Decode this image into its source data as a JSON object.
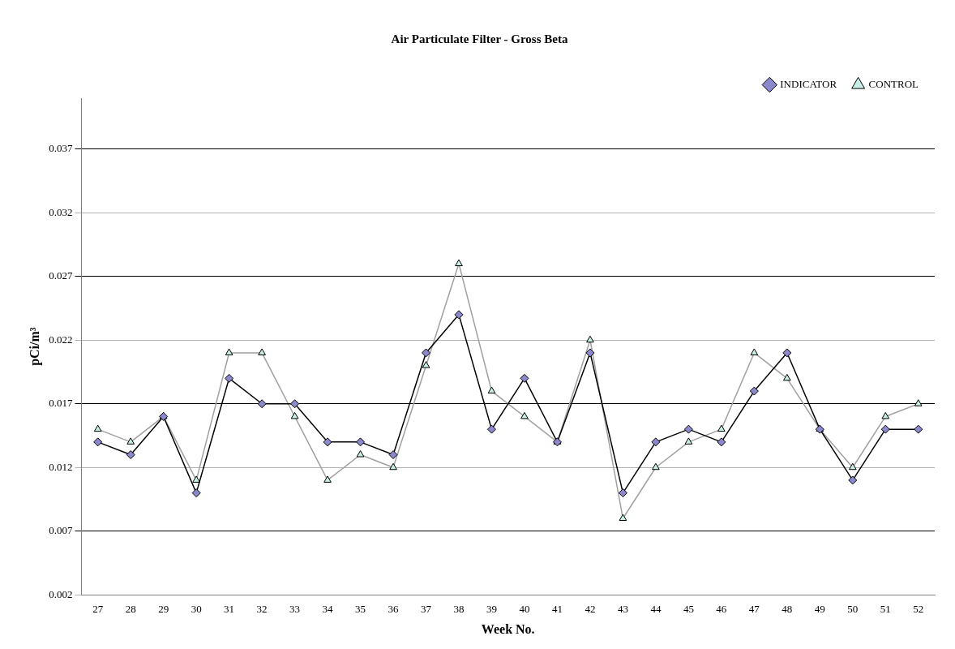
{
  "chart_data": {
    "type": "line",
    "title": "Air Particulate Filter - Gross Beta",
    "xlabel": "Week No.",
    "ylabel": "pCi/m³",
    "categories": [
      "27",
      "28",
      "29",
      "30",
      "31",
      "32",
      "33",
      "34",
      "35",
      "36",
      "37",
      "38",
      "39",
      "40",
      "41",
      "42",
      "43",
      "44",
      "45",
      "46",
      "47",
      "48",
      "49",
      "50",
      "51",
      "52"
    ],
    "series": [
      {
        "name": "INDICATOR",
        "color": "#000000",
        "marker": "diamond",
        "values": [
          0.014,
          0.013,
          0.016,
          0.01,
          0.019,
          0.017,
          0.017,
          0.014,
          0.014,
          0.013,
          0.021,
          0.024,
          0.015,
          0.019,
          0.014,
          0.021,
          0.01,
          0.014,
          0.015,
          0.014,
          0.018,
          0.021,
          0.015,
          0.011,
          0.015,
          0.015
        ]
      },
      {
        "name": "CONTROL",
        "color": "#a0a0a0",
        "marker": "triangle",
        "values": [
          0.015,
          0.014,
          0.016,
          0.011,
          0.021,
          0.021,
          0.016,
          0.011,
          0.013,
          0.012,
          0.02,
          0.028,
          0.018,
          0.016,
          0.014,
          0.022,
          0.008,
          0.012,
          0.014,
          0.015,
          0.021,
          0.019,
          0.015,
          0.012,
          0.016,
          0.017
        ]
      }
    ],
    "ylim": [
      0.002,
      0.041
    ],
    "yticks": [
      0.002,
      0.007,
      0.012,
      0.017,
      0.022,
      0.027,
      0.032,
      0.037
    ],
    "grid": "y",
    "legend": "top right"
  }
}
